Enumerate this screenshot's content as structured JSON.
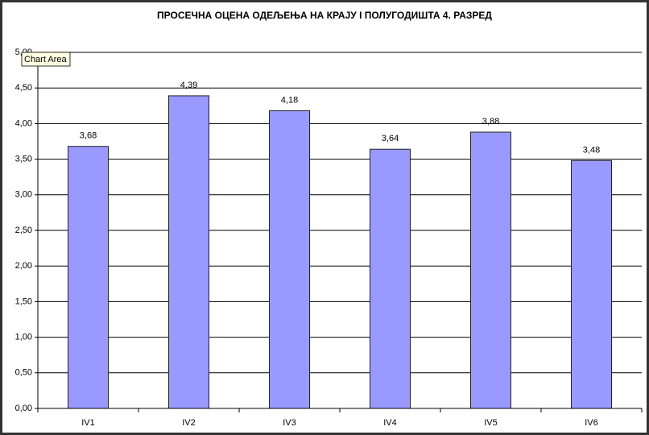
{
  "chart_data": {
    "type": "bar",
    "title": "ПРОСЕЧНА ОЦЕНА ОДЕЉЕЊА НА КРАЈУ  I ПОЛУГОДИШТА 4. РАЗРЕД",
    "tooltip": "Chart Area",
    "categories": [
      "IV1",
      "IV2",
      "IV3",
      "IV4",
      "IV5",
      "IV6"
    ],
    "values": [
      3.68,
      4.39,
      4.18,
      3.64,
      3.88,
      3.48
    ],
    "value_labels": [
      "3,68",
      "4,39",
      "4,18",
      "3,64",
      "3,88",
      "3,48"
    ],
    "color": "#9999ff",
    "ylim": [
      0,
      5
    ],
    "yticks": [
      {
        "value": 0,
        "label": "0,00"
      },
      {
        "value": 0.5,
        "label": "0,50"
      },
      {
        "value": 1,
        "label": "1,00"
      },
      {
        "value": 1.5,
        "label": "1,50"
      },
      {
        "value": 2,
        "label": "2,00"
      },
      {
        "value": 2.5,
        "label": "2,50"
      },
      {
        "value": 3,
        "label": "3,00"
      },
      {
        "value": 3.5,
        "label": "3,50"
      },
      {
        "value": 4,
        "label": "4,00"
      },
      {
        "value": 4.5,
        "label": "4,50"
      },
      {
        "value": 5,
        "label": "5,00"
      }
    ],
    "grid": true
  }
}
